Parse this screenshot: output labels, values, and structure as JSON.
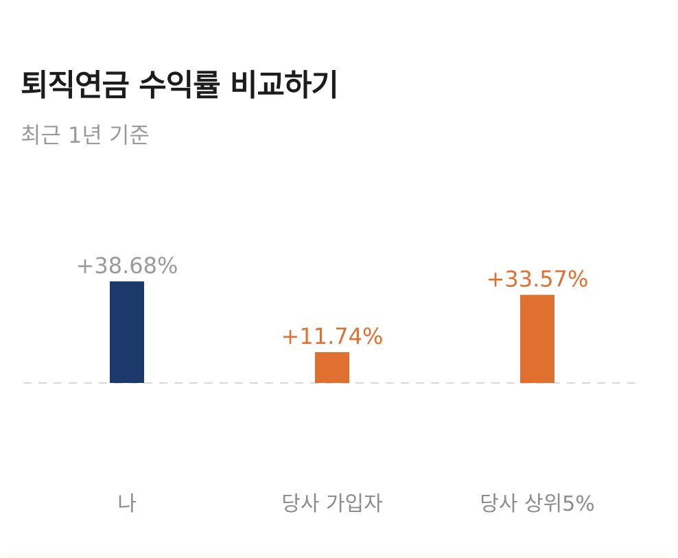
{
  "header": {
    "title": "퇴직연금 수익률 비교하기",
    "subtitle": "최근 1년 기준"
  },
  "colors": {
    "me": "#1b3a6b",
    "others": "#e07030",
    "me_label": "#9a9a9a",
    "others_label": "#e07030",
    "category_label": "#8c8c8c",
    "baseline": "#d9d9d9"
  },
  "chart_data": {
    "type": "bar",
    "categories": [
      "나",
      "당사 가입자",
      "당사 상위5%"
    ],
    "values": [
      38.68,
      11.74,
      33.57
    ],
    "value_labels": [
      "+38.68%",
      "+11.74%",
      "+33.57%"
    ],
    "title": "",
    "xlabel": "",
    "ylabel": "",
    "ylim": [
      0,
      38.68
    ],
    "grid": false,
    "baseline": "dashed"
  }
}
